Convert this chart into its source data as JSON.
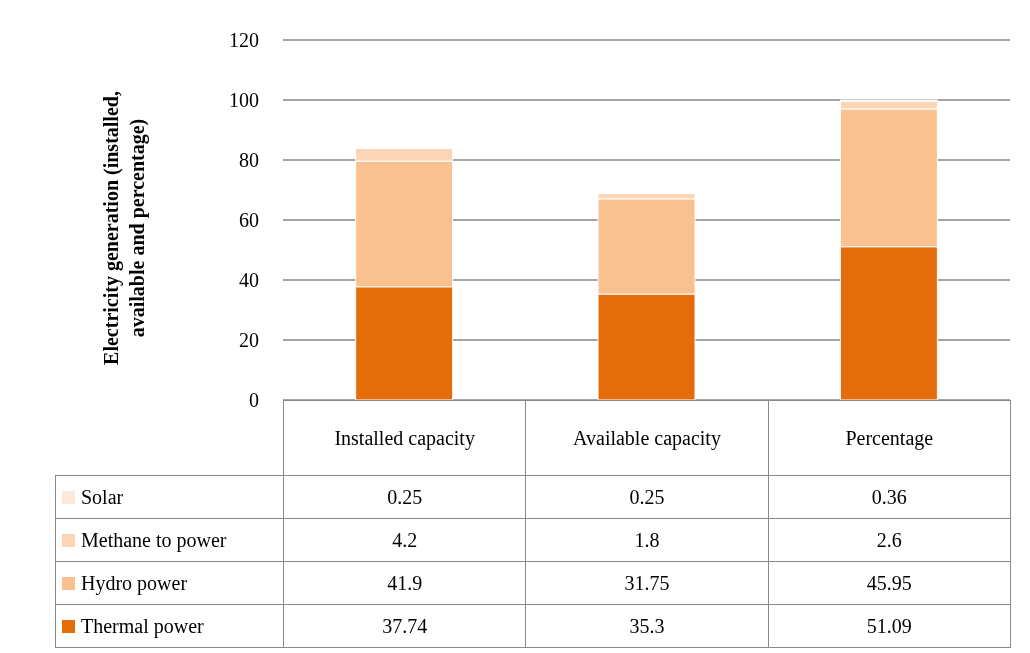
{
  "chart_data": {
    "type": "bar",
    "stacked": true,
    "ylabel": "Electricity generation (installed, available and percentage)",
    "categories": [
      "Installed capacity",
      "Available capacity",
      "Percentage"
    ],
    "series": [
      {
        "name": "Thermal power",
        "color": "#e46c0a",
        "values": [
          37.74,
          35.3,
          51.09
        ]
      },
      {
        "name": "Hydro power",
        "color": "#f9c090",
        "values": [
          41.9,
          31.75,
          45.95
        ]
      },
      {
        "name": "Methane to power",
        "color": "#fbd5b5",
        "values": [
          4.2,
          1.8,
          2.6
        ]
      },
      {
        "name": "Solar",
        "color": "#fde9d9",
        "values": [
          0.25,
          0.25,
          0.36
        ]
      }
    ],
    "ylim": [
      0,
      120
    ],
    "yticks": [
      0,
      20,
      40,
      60,
      80,
      100,
      120
    ],
    "grid": "y",
    "legend": "bottom",
    "data_labels": true
  }
}
